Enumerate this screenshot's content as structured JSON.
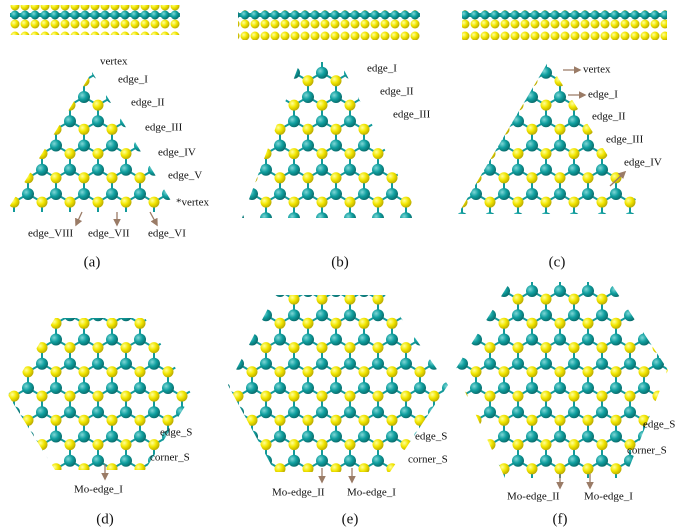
{
  "panels": [
    {
      "labels": [
        "vertex",
        "edge_I",
        "edge_II",
        "edge_III",
        "edge_IV",
        "edge_V",
        "*vertex",
        "edge_VIII",
        "edge_VII",
        "edge_VI"
      ],
      "caption": "(a)"
    },
    {
      "labels": [
        "edge_I",
        "edge_II",
        "edge_III"
      ],
      "caption": "(b)"
    },
    {
      "labels": [
        "vertex",
        "edge_I",
        "edge_II",
        "edge_III",
        "edge_IV"
      ],
      "caption": "(c)"
    },
    {
      "labels": [
        "edge_S",
        "corner_S",
        "Mo-edge_I"
      ],
      "caption": "(d)"
    },
    {
      "labels": [
        "edge_S",
        "corner_S",
        "Mo-edge_II",
        "Mo-edge_I"
      ],
      "caption": "(e)"
    },
    {
      "labels": [
        "edge_S",
        "corner_S",
        "Mo-edge_II",
        "Mo-edge_I"
      ],
      "caption": "(f)"
    }
  ]
}
